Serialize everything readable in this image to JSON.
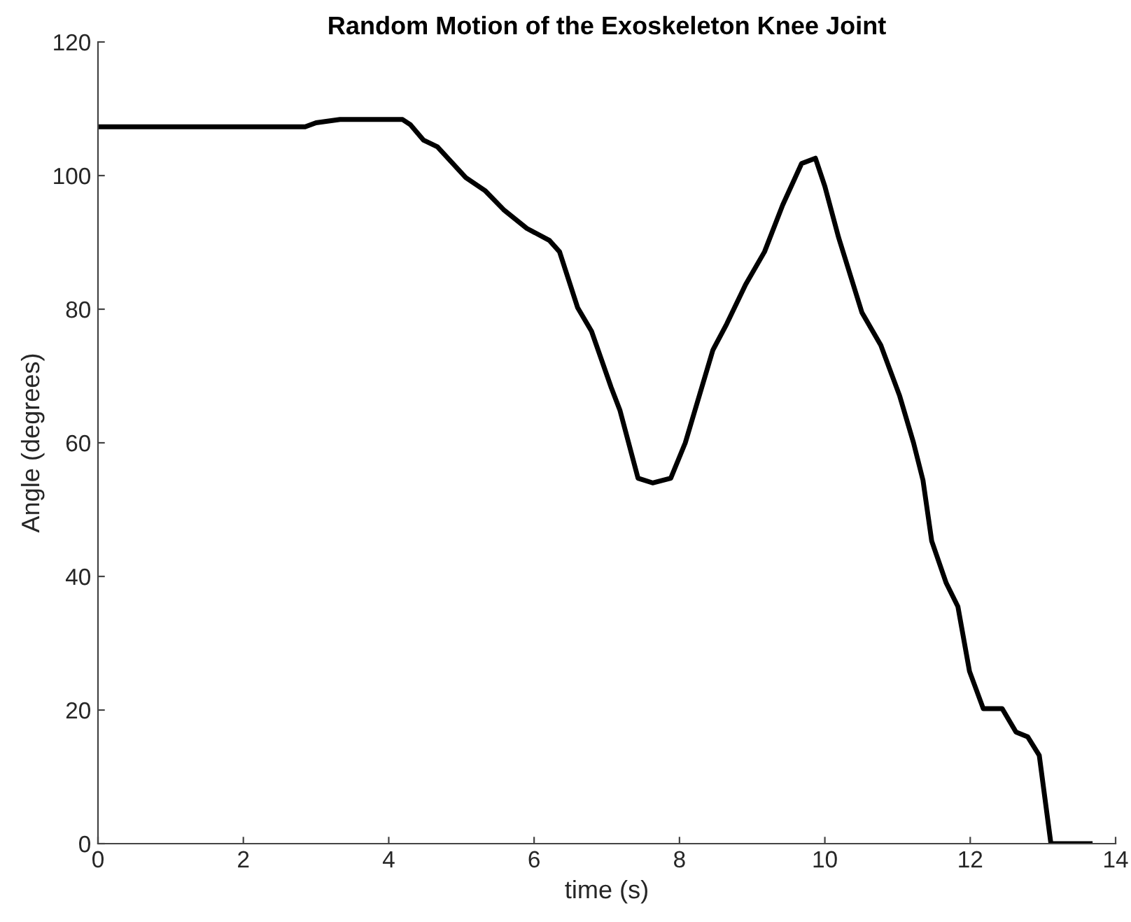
{
  "chart_data": {
    "type": "line",
    "title": "Random Motion of the Exoskeleton Knee Joint",
    "xlabel": "time (s)",
    "ylabel": "Angle (degrees)",
    "xlim": [
      0,
      14
    ],
    "ylim": [
      0,
      120
    ],
    "xticks": [
      0,
      2,
      4,
      6,
      8,
      10,
      12,
      14
    ],
    "yticks": [
      0,
      20,
      40,
      60,
      80,
      100,
      120
    ],
    "grid": false,
    "marker": "none",
    "line_style": "solid",
    "series": [
      {
        "color": "#000000",
        "x": [
          0,
          2.85,
          3.0,
          3.33,
          4.19,
          4.3,
          4.48,
          4.67,
          5.06,
          5.33,
          5.58,
          5.9,
          6.21,
          6.35,
          6.6,
          6.79,
          7.06,
          7.18,
          7.43,
          7.63,
          7.88,
          8.08,
          8.46,
          8.65,
          8.91,
          9.17,
          9.42,
          9.68,
          9.87,
          10.0,
          10.19,
          10.51,
          10.77,
          11.03,
          11.22,
          11.35,
          11.47,
          11.67,
          11.83,
          11.99,
          12.18,
          12.44,
          12.63,
          12.79,
          12.95,
          13.11,
          13.65
        ],
        "values": [
          107.3,
          107.3,
          107.9,
          108.4,
          108.4,
          107.6,
          105.3,
          104.3,
          99.7,
          97.7,
          94.9,
          92.1,
          90.3,
          88.6,
          80.2,
          76.7,
          68.3,
          64.9,
          54.7,
          54.0,
          54.7,
          60,
          73.9,
          77.8,
          83.7,
          88.6,
          95.6,
          101.8,
          102.6,
          98.4,
          90.7,
          79.5,
          74.6,
          67,
          60,
          54.4,
          45.3,
          39,
          35.5,
          25.8,
          20.2,
          20.2,
          16.7,
          16.0,
          13.2,
          0,
          0
        ]
      }
    ]
  }
}
